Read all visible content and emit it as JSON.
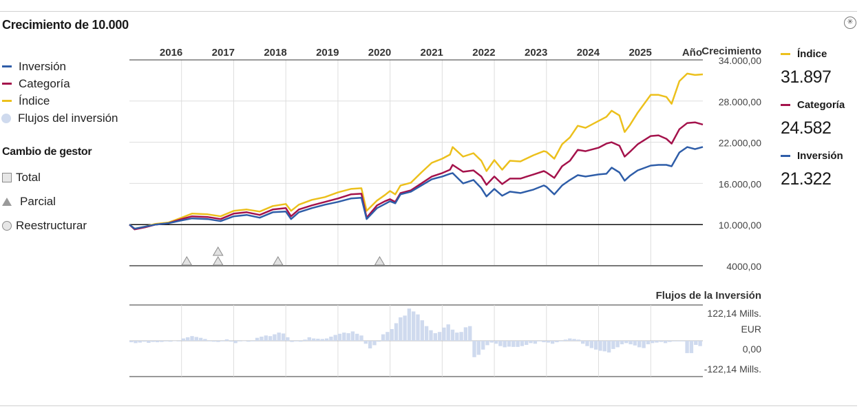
{
  "title": "Crecimiento de 10.000",
  "settings_icon": "gear-icon",
  "legend": [
    {
      "label": "Inversión",
      "color": "#2e5da8"
    },
    {
      "label": "Categoría",
      "color": "#a4124b"
    },
    {
      "label": "Índice",
      "color": "#ecc01c"
    },
    {
      "label": "Flujos del inversión",
      "color": "#cfdaee"
    }
  ],
  "manager_change": {
    "title": "Cambio de gestor",
    "items": [
      {
        "label": "Total",
        "symbol": "square"
      },
      {
        "label": "Parcial",
        "symbol": "triangle"
      },
      {
        "label": "Reestructurar",
        "symbol": "circle"
      }
    ]
  },
  "summary": [
    {
      "label": "Índice",
      "value": "31.897",
      "color": "#ecc01c"
    },
    {
      "label": "Categoría",
      "value": "24.582",
      "color": "#a4124b"
    },
    {
      "label": "Inversión",
      "value": "21.322",
      "color": "#2e5da8"
    }
  ],
  "chart_data": [
    {
      "type": "line",
      "title": "Crecimiento de 10.000",
      "x_axis_title": "Año",
      "y_axis_title": "Crecimiento",
      "x_ticks": [
        "2016",
        "2017",
        "2018",
        "2019",
        "2020",
        "2021",
        "2022",
        "2023",
        "2024",
        "2025"
      ],
      "y_ticks": [
        "34.000,00",
        "28.000,00",
        "22.000,00",
        "16.000,00",
        "10.000,00",
        "4000,00"
      ],
      "y_tick_values": [
        34000,
        28000,
        22000,
        16000,
        10000,
        4000
      ],
      "ylim": [
        4000,
        34000
      ],
      "xlim": [
        2015.0,
        2026.0
      ],
      "baseline": 10000,
      "grid": true,
      "series": [
        {
          "name": "Índice",
          "color": "#ecc01c",
          "points": [
            [
              2015.0,
              10000
            ],
            [
              2015.1,
              9400
            ],
            [
              2015.3,
              9700
            ],
            [
              2015.5,
              10100
            ],
            [
              2015.75,
              10300
            ],
            [
              2016.0,
              11000
            ],
            [
              2016.2,
              11600
            ],
            [
              2016.5,
              11500
            ],
            [
              2016.75,
              11200
            ],
            [
              2017.0,
              12000
            ],
            [
              2017.25,
              12200
            ],
            [
              2017.5,
              11900
            ],
            [
              2017.75,
              12700
            ],
            [
              2018.0,
              13000
            ],
            [
              2018.1,
              12000
            ],
            [
              2018.25,
              12900
            ],
            [
              2018.5,
              13600
            ],
            [
              2018.75,
              14000
            ],
            [
              2019.0,
              14700
            ],
            [
              2019.25,
              15200
            ],
            [
              2019.45,
              15300
            ],
            [
              2019.55,
              12000
            ],
            [
              2019.75,
              13500
            ],
            [
              2019.9,
              14300
            ],
            [
              2020.0,
              14900
            ],
            [
              2020.1,
              14400
            ],
            [
              2020.2,
              15700
            ],
            [
              2020.4,
              16100
            ],
            [
              2020.6,
              17600
            ],
            [
              2020.8,
              19000
            ],
            [
              2021.0,
              19600
            ],
            [
              2021.15,
              20200
            ],
            [
              2021.2,
              21300
            ],
            [
              2021.4,
              19900
            ],
            [
              2021.6,
              20400
            ],
            [
              2021.75,
              19300
            ],
            [
              2021.85,
              17800
            ],
            [
              2022.0,
              19400
            ],
            [
              2022.15,
              18000
            ],
            [
              2022.3,
              19300
            ],
            [
              2022.5,
              19200
            ],
            [
              2022.75,
              20100
            ],
            [
              2022.95,
              20700
            ],
            [
              2023.0,
              20600
            ],
            [
              2023.15,
              19600
            ],
            [
              2023.3,
              21700
            ],
            [
              2023.45,
              22700
            ],
            [
              2023.6,
              24400
            ],
            [
              2023.75,
              24100
            ],
            [
              2024.0,
              25100
            ],
            [
              2024.15,
              25700
            ],
            [
              2024.25,
              26600
            ],
            [
              2024.4,
              25900
            ],
            [
              2024.5,
              23500
            ],
            [
              2024.6,
              24500
            ],
            [
              2024.75,
              26300
            ],
            [
              2025.0,
              28900
            ],
            [
              2025.15,
              28900
            ],
            [
              2025.3,
              28600
            ],
            [
              2025.4,
              27600
            ],
            [
              2025.55,
              30900
            ],
            [
              2025.7,
              32000
            ],
            [
              2025.85,
              31800
            ],
            [
              2026.0,
              31897
            ]
          ]
        },
        {
          "name": "Categoría",
          "color": "#a4124b",
          "points": [
            [
              2015.0,
              10000
            ],
            [
              2015.1,
              9300
            ],
            [
              2015.3,
              9600
            ],
            [
              2015.5,
              10000
            ],
            [
              2015.75,
              10200
            ],
            [
              2016.0,
              10800
            ],
            [
              2016.2,
              11200
            ],
            [
              2016.5,
              11100
            ],
            [
              2016.75,
              10800
            ],
            [
              2017.0,
              11600
            ],
            [
              2017.25,
              11800
            ],
            [
              2017.5,
              11400
            ],
            [
              2017.75,
              12200
            ],
            [
              2018.0,
              12400
            ],
            [
              2018.1,
              11200
            ],
            [
              2018.25,
              12200
            ],
            [
              2018.5,
              12800
            ],
            [
              2018.75,
              13300
            ],
            [
              2019.0,
              13800
            ],
            [
              2019.25,
              14400
            ],
            [
              2019.45,
              14500
            ],
            [
              2019.55,
              11000
            ],
            [
              2019.75,
              12800
            ],
            [
              2019.9,
              13400
            ],
            [
              2020.0,
              13700
            ],
            [
              2020.1,
              13300
            ],
            [
              2020.2,
              14600
            ],
            [
              2020.4,
              15000
            ],
            [
              2020.6,
              16000
            ],
            [
              2020.8,
              17000
            ],
            [
              2021.0,
              17500
            ],
            [
              2021.15,
              18000
            ],
            [
              2021.2,
              18700
            ],
            [
              2021.4,
              17700
            ],
            [
              2021.6,
              17900
            ],
            [
              2021.75,
              17000
            ],
            [
              2021.85,
              15800
            ],
            [
              2022.0,
              17000
            ],
            [
              2022.15,
              15900
            ],
            [
              2022.3,
              16700
            ],
            [
              2022.5,
              16700
            ],
            [
              2022.75,
              17300
            ],
            [
              2022.95,
              17800
            ],
            [
              2023.0,
              17600
            ],
            [
              2023.15,
              16800
            ],
            [
              2023.3,
              18500
            ],
            [
              2023.45,
              19300
            ],
            [
              2023.6,
              20900
            ],
            [
              2023.75,
              20700
            ],
            [
              2024.0,
              21200
            ],
            [
              2024.15,
              21800
            ],
            [
              2024.25,
              22000
            ],
            [
              2024.4,
              21500
            ],
            [
              2024.5,
              19900
            ],
            [
              2024.6,
              20600
            ],
            [
              2024.75,
              21700
            ],
            [
              2025.0,
              22900
            ],
            [
              2025.15,
              23000
            ],
            [
              2025.3,
              22500
            ],
            [
              2025.4,
              21800
            ],
            [
              2025.55,
              23900
            ],
            [
              2025.7,
              24800
            ],
            [
              2025.85,
              24900
            ],
            [
              2026.0,
              24582
            ]
          ]
        },
        {
          "name": "Inversión",
          "color": "#2e5da8",
          "points": [
            [
              2015.0,
              10000
            ],
            [
              2015.1,
              9400
            ],
            [
              2015.3,
              9700
            ],
            [
              2015.5,
              10000
            ],
            [
              2015.75,
              10200
            ],
            [
              2016.0,
              10600
            ],
            [
              2016.2,
              10900
            ],
            [
              2016.5,
              10800
            ],
            [
              2016.75,
              10500
            ],
            [
              2017.0,
              11200
            ],
            [
              2017.25,
              11400
            ],
            [
              2017.5,
              11000
            ],
            [
              2017.75,
              11800
            ],
            [
              2018.0,
              11900
            ],
            [
              2018.1,
              10800
            ],
            [
              2018.25,
              11800
            ],
            [
              2018.5,
              12400
            ],
            [
              2018.75,
              12900
            ],
            [
              2019.0,
              13300
            ],
            [
              2019.25,
              13800
            ],
            [
              2019.45,
              13900
            ],
            [
              2019.55,
              10800
            ],
            [
              2019.75,
              12400
            ],
            [
              2019.9,
              13000
            ],
            [
              2020.0,
              13400
            ],
            [
              2020.1,
              13100
            ],
            [
              2020.2,
              14400
            ],
            [
              2020.4,
              14800
            ],
            [
              2020.6,
              15700
            ],
            [
              2020.8,
              16600
            ],
            [
              2021.0,
              17000
            ],
            [
              2021.15,
              17400
            ],
            [
              2021.2,
              17500
            ],
            [
              2021.4,
              16000
            ],
            [
              2021.6,
              16500
            ],
            [
              2021.75,
              15300
            ],
            [
              2021.85,
              14100
            ],
            [
              2022.0,
              15200
            ],
            [
              2022.15,
              14200
            ],
            [
              2022.3,
              14800
            ],
            [
              2022.5,
              14600
            ],
            [
              2022.75,
              15100
            ],
            [
              2022.95,
              15700
            ],
            [
              2023.0,
              15500
            ],
            [
              2023.15,
              14400
            ],
            [
              2023.3,
              15700
            ],
            [
              2023.45,
              16500
            ],
            [
              2023.6,
              17200
            ],
            [
              2023.75,
              17000
            ],
            [
              2024.0,
              17300
            ],
            [
              2024.15,
              17400
            ],
            [
              2024.25,
              18300
            ],
            [
              2024.4,
              17600
            ],
            [
              2024.5,
              16400
            ],
            [
              2024.6,
              17100
            ],
            [
              2024.75,
              17900
            ],
            [
              2025.0,
              18600
            ],
            [
              2025.15,
              18700
            ],
            [
              2025.3,
              18700
            ],
            [
              2025.4,
              18500
            ],
            [
              2025.55,
              20500
            ],
            [
              2025.7,
              21300
            ],
            [
              2025.85,
              21000
            ],
            [
              2026.0,
              21322
            ]
          ]
        }
      ],
      "manager_changes": [
        {
          "x": 2016.1,
          "type": "Parcial"
        },
        {
          "x": 2016.7,
          "type": "Parcial"
        },
        {
          "x": 2016.7,
          "type": "Parcial"
        },
        {
          "x": 2017.85,
          "type": "Parcial"
        },
        {
          "x": 2019.8,
          "type": "Parcial"
        }
      ]
    },
    {
      "type": "bar",
      "title": "Flujos de la Inversión",
      "y_ticks": [
        "122,14 Mills.",
        "EUR",
        "0,00",
        "-122,14 Mills."
      ],
      "ylim": [
        -122.14,
        122.14
      ],
      "unit": "Mills. EUR",
      "color": "#cfdaee",
      "x_start": 2015.0,
      "x_step": 0.0833,
      "values": [
        -5,
        -8,
        -6,
        -3,
        -7,
        -4,
        -5,
        -4,
        -2,
        -3,
        -1,
        -2,
        8,
        12,
        16,
        13,
        10,
        6,
        -2,
        -3,
        -4,
        -2,
        5,
        -3,
        -8,
        -2,
        -1,
        -3,
        -2,
        10,
        14,
        18,
        16,
        22,
        28,
        25,
        12,
        -4,
        -2,
        -3,
        4,
        12,
        8,
        7,
        6,
        8,
        14,
        20,
        24,
        28,
        26,
        32,
        24,
        18,
        -10,
        -26,
        -15,
        -3,
        22,
        30,
        40,
        60,
        80,
        86,
        110,
        100,
        90,
        70,
        50,
        36,
        26,
        30,
        45,
        56,
        38,
        28,
        30,
        46,
        50,
        -56,
        -48,
        -30,
        -15,
        -6,
        -10,
        -18,
        -22,
        -20,
        -21,
        -21,
        -18,
        -14,
        -8,
        -10,
        -2,
        -5,
        -6,
        -10,
        -5,
        -2,
        4,
        8,
        6,
        4,
        -10,
        -18,
        -25,
        -30,
        -34,
        -36,
        -40,
        -28,
        -22,
        -12,
        -8,
        -12,
        -16,
        -22,
        -25,
        -12,
        -8,
        -6,
        -4,
        -8,
        -4,
        -2,
        -2,
        -2,
        -42,
        -42,
        -14,
        -18,
        -30,
        -40,
        -35,
        -34,
        -36,
        -33,
        -30,
        -26,
        -24,
        -20,
        -35,
        8,
        5
      ]
    }
  ]
}
